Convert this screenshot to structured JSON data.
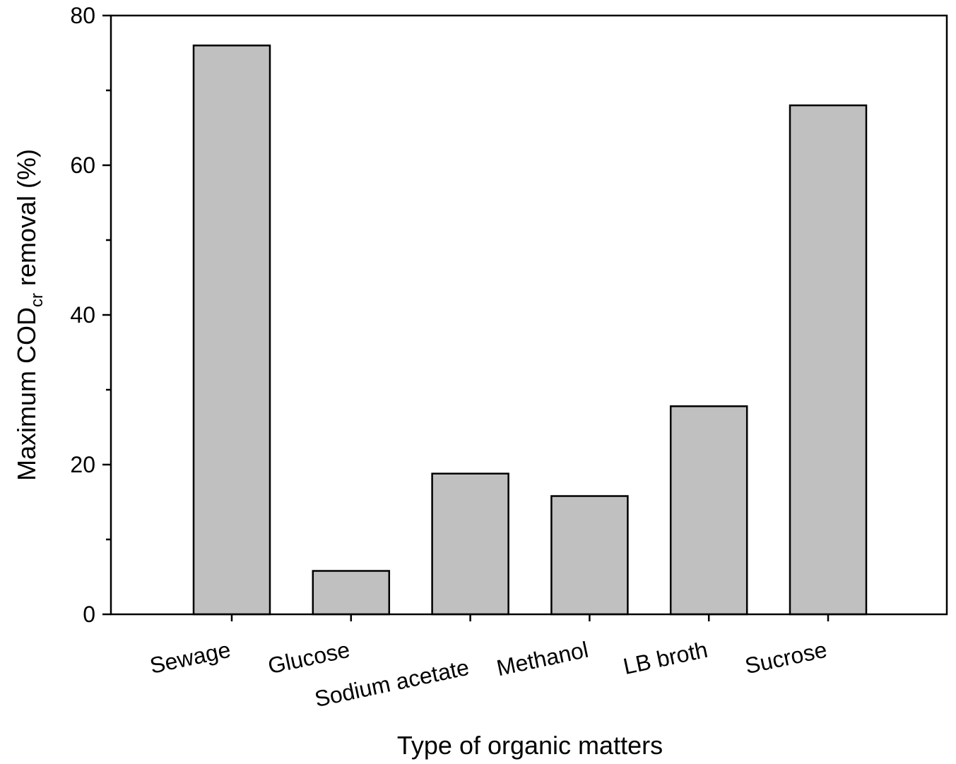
{
  "chart_data": {
    "type": "bar",
    "categories": [
      "Sewage",
      "Glucose",
      "Sodium acetate",
      "Methanol",
      "LB broth",
      "Sucrose"
    ],
    "values": [
      76,
      5.8,
      18.8,
      15.8,
      27.8,
      68
    ],
    "xlabel": "Type of  organic matters",
    "ylabel_main": "Maximum COD",
    "ylabel_sub": "cr",
    "ylabel_suffix": " removal (%)",
    "ylim": [
      0,
      80
    ],
    "major_ticks": [
      0,
      20,
      40,
      60,
      80
    ],
    "minor_ticks": [
      10,
      30,
      50,
      70
    ],
    "bar_color": "#c0c0c0",
    "grid": false,
    "legend": "none"
  }
}
